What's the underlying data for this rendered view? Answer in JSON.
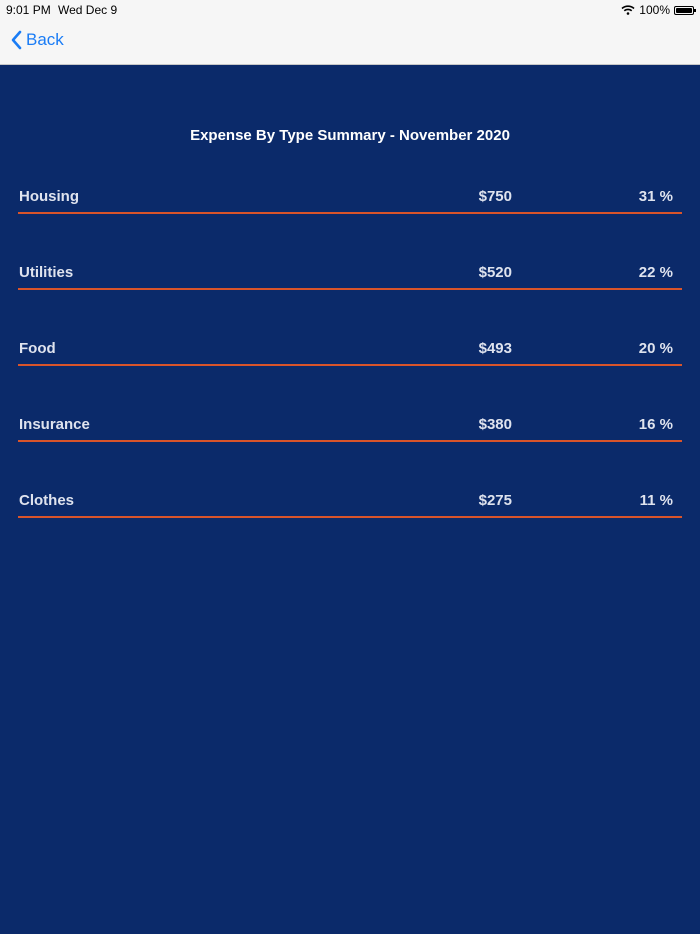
{
  "status_bar": {
    "time": "9:01 PM",
    "date": "Wed Dec 9",
    "battery": "100%"
  },
  "nav": {
    "back_label": "Back"
  },
  "title": "Expense By Type Summary - November 2020",
  "rows": [
    {
      "name": "Housing",
      "amount": "$750",
      "percent": "31 %"
    },
    {
      "name": "Utilities",
      "amount": "$520",
      "percent": "22 %"
    },
    {
      "name": "Food",
      "amount": "$493",
      "percent": "20 %"
    },
    {
      "name": "Insurance",
      "amount": "$380",
      "percent": "16 %"
    },
    {
      "name": "Clothes",
      "amount": "$275",
      "percent": "11 %"
    }
  ],
  "colors": {
    "background": "#0b2a6a",
    "accent": "#d9542a",
    "link": "#1a7cf5"
  }
}
